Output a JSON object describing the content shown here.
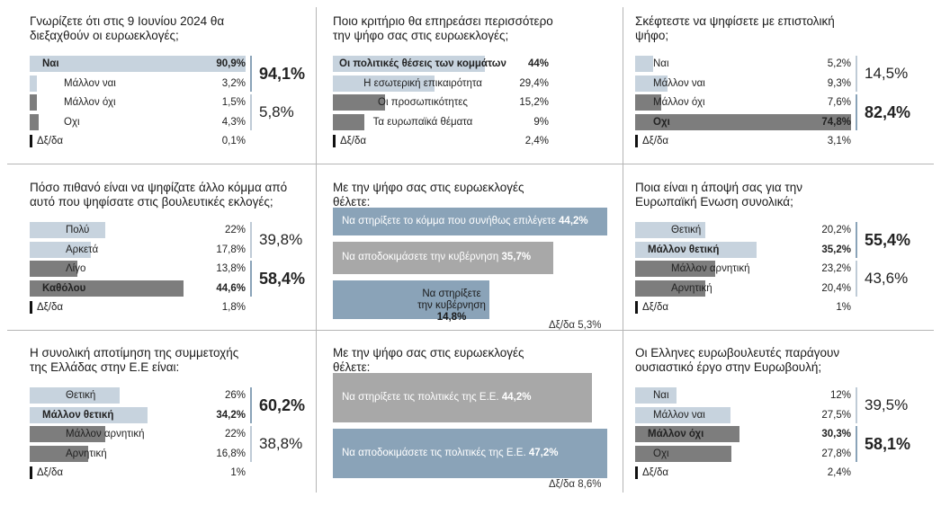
{
  "colors": {
    "light": "#c7d3de",
    "blue": "#8aa3b8",
    "gray": "#a8a8a8",
    "dark": "#7d7d7d",
    "pillar": "#8aa3b8",
    "dk": "#111111"
  },
  "chart_data": [
    {
      "type": "bar",
      "title": "Γνωρίζετε ότι στις 9 Ιουνίου 2024 θα διεξαχθούν οι ευρωεκλογές;",
      "rows": [
        {
          "label": "Ναι",
          "value_text": "90,9%",
          "value": 90.9,
          "color": "light",
          "bold": true
        },
        {
          "label": "Μάλλον ναι",
          "value_text": "3,2%",
          "value": 3.2,
          "color": "light",
          "bold": false
        },
        {
          "label": "Μάλλον όχι",
          "value_text": "1,5%",
          "value": 1.5,
          "color": "dark",
          "bold": false
        },
        {
          "label": "Οχι",
          "value_text": "4,3%",
          "value": 4.3,
          "color": "dark",
          "bold": false
        },
        {
          "label": "Δξ/δα",
          "value_text": "0,1%",
          "value": 0.1,
          "color": "dk",
          "bold": false
        }
      ],
      "groups": [
        {
          "value_text": "94,1%",
          "bold": true
        },
        {
          "value_text": "5,8%",
          "bold": false
        }
      ]
    },
    {
      "type": "bar",
      "title": "Ποιο κριτήριο θα επηρεάσει περισσότερο την ψήφο σας στις ευρωεκλογές;",
      "rows": [
        {
          "label": "Οι πολιτικές θέσεις των κομμάτων",
          "value_text": "44%",
          "value": 44,
          "color": "light",
          "bold": true
        },
        {
          "label": "Η εσωτερική επικαιρότητα",
          "value_text": "29,4%",
          "value": 29.4,
          "color": "light",
          "bold": false
        },
        {
          "label": "Οι προσωπικότητες",
          "value_text": "15,2%",
          "value": 15.2,
          "color": "dark",
          "bold": false
        },
        {
          "label": "Τα ευρωπαϊκά θέματα",
          "value_text": "9%",
          "value": 9,
          "color": "dark",
          "bold": false
        },
        {
          "label": "Δξ/δα",
          "value_text": "2,4%",
          "value": 2.4,
          "color": "dk",
          "bold": false
        }
      ],
      "groups": []
    },
    {
      "type": "bar",
      "title": "Σκέφτεστε να ψηφίσετε με επιστολική ψήφο;",
      "rows": [
        {
          "label": "Ναι",
          "value_text": "5,2%",
          "value": 5.2,
          "color": "light",
          "bold": false
        },
        {
          "label": "Μάλλον ναι",
          "value_text": "9,3%",
          "value": 9.3,
          "color": "light",
          "bold": false
        },
        {
          "label": "Μάλλον όχι",
          "value_text": "7,6%",
          "value": 7.6,
          "color": "dark",
          "bold": false
        },
        {
          "label": "Οχι",
          "value_text": "74,8%",
          "value": 74.8,
          "color": "dark",
          "bold": true
        },
        {
          "label": "Δξ/δα",
          "value_text": "3,1%",
          "value": 3.1,
          "color": "dk",
          "bold": false
        }
      ],
      "groups": [
        {
          "value_text": "14,5%",
          "bold": false
        },
        {
          "value_text": "82,4%",
          "bold": true
        }
      ]
    },
    {
      "type": "bar",
      "title": "Πόσο πιθανό είναι να ψηφίζατε άλλο κόμμα από αυτό που ψηφίσατε στις βουλευτικές εκλογές;",
      "rows": [
        {
          "label": "Πολύ",
          "value_text": "22%",
          "value": 22,
          "color": "light",
          "bold": false
        },
        {
          "label": "Αρκετά",
          "value_text": "17,8%",
          "value": 17.8,
          "color": "light",
          "bold": false
        },
        {
          "label": "Λίγο",
          "value_text": "13,8%",
          "value": 13.8,
          "color": "dark",
          "bold": false
        },
        {
          "label": "Καθόλου",
          "value_text": "44,6%",
          "value": 44.6,
          "color": "dark",
          "bold": true
        },
        {
          "label": "Δξ/δα",
          "value_text": "1,8%",
          "value": 1.8,
          "color": "dk",
          "bold": false
        }
      ],
      "groups": [
        {
          "value_text": "39,8%",
          "bold": false
        },
        {
          "value_text": "58,4%",
          "bold": true
        }
      ]
    },
    {
      "type": "bar",
      "title": "Με την ψήφο σας στις ευρωεκλογές θέλετε:",
      "boxes": [
        {
          "label": "Να στηρίξετε το κόμμα που συνήθως επιλέγετε",
          "value_text": "44,2%",
          "value": 44.2,
          "color": "blue"
        },
        {
          "label": "Να αποδοκιμάσετε την κυβέρνηση",
          "value_text": "35,7%",
          "value": 35.7,
          "color": "gray"
        },
        {
          "label": "Να στηρίξετε την κυβέρνηση",
          "value_text": "14,8%",
          "value": 14.8,
          "color": "blue"
        }
      ],
      "dk": {
        "label": "Δξ/δα",
        "value_text": "5,3%",
        "value": 5.3
      }
    },
    {
      "type": "bar",
      "title": "Ποια είναι η άποψή σας για την Ευρωπαϊκή Ενωση συνολικά;",
      "rows": [
        {
          "label": "Θετική",
          "value_text": "20,2%",
          "value": 20.2,
          "color": "light",
          "bold": false
        },
        {
          "label": "Μάλλον θετική",
          "value_text": "35,2%",
          "value": 35.2,
          "color": "light",
          "bold": true
        },
        {
          "label": "Μάλλον αρνητική",
          "value_text": "23,2%",
          "value": 23.2,
          "color": "dark",
          "bold": false
        },
        {
          "label": "Αρνητική",
          "value_text": "20,4%",
          "value": 20.4,
          "color": "dark",
          "bold": false
        },
        {
          "label": "Δξ/δα",
          "value_text": "1%",
          "value": 1,
          "color": "dk",
          "bold": false
        }
      ],
      "groups": [
        {
          "value_text": "55,4%",
          "bold": true
        },
        {
          "value_text": "43,6%",
          "bold": false
        }
      ]
    },
    {
      "type": "bar",
      "title": "Η συνολική αποτίμηση της συμμετοχής της Ελλάδας στην Ε.Ε είναι:",
      "rows": [
        {
          "label": "Θετική",
          "value_text": "26%",
          "value": 26,
          "color": "light",
          "bold": false
        },
        {
          "label": "Μάλλον θετική",
          "value_text": "34,2%",
          "value": 34.2,
          "color": "light",
          "bold": true
        },
        {
          "label": "Μάλλον αρνητική",
          "value_text": "22%",
          "value": 22,
          "color": "dark",
          "bold": false
        },
        {
          "label": "Αρνητική",
          "value_text": "16,8%",
          "value": 16.8,
          "color": "dark",
          "bold": false
        },
        {
          "label": "Δξ/δα",
          "value_text": "1%",
          "value": 1,
          "color": "dk",
          "bold": false
        }
      ],
      "groups": [
        {
          "value_text": "60,2%",
          "bold": true
        },
        {
          "value_text": "38,8%",
          "bold": false
        }
      ]
    },
    {
      "type": "bar",
      "title": "Με την ψήφο σας στις ευρωεκλογές θέλετε:",
      "boxes": [
        {
          "label": "Να στηρίξετε τις πολιτικές της Ε.Ε.",
          "value_text": "44,2%",
          "value": 44.2,
          "color": "gray"
        },
        {
          "label": "Να αποδοκιμάσετε τις πολιτικές της Ε.Ε.",
          "value_text": "47,2%",
          "value": 47.2,
          "color": "blue"
        }
      ],
      "dk": {
        "label": "Δξ/δα",
        "value_text": "8,6%",
        "value": 8.6
      }
    },
    {
      "type": "bar",
      "title": "Οι Ελληνες ευρωβουλευτές παράγουν ουσιαστικό έργο στην Ευρωβουλή;",
      "rows": [
        {
          "label": "Ναι",
          "value_text": "12%",
          "value": 12,
          "color": "light",
          "bold": false
        },
        {
          "label": "Μάλλον ναι",
          "value_text": "27,5%",
          "value": 27.5,
          "color": "light",
          "bold": false
        },
        {
          "label": "Μάλλον όχι",
          "value_text": "30,3%",
          "value": 30.3,
          "color": "dark",
          "bold": true
        },
        {
          "label": "Οχι",
          "value_text": "27,8%",
          "value": 27.8,
          "color": "dark",
          "bold": false
        },
        {
          "label": "Δξ/δα",
          "value_text": "2,4%",
          "value": 2.4,
          "color": "dk",
          "bold": false
        }
      ],
      "groups": [
        {
          "value_text": "39,5%",
          "bold": false
        },
        {
          "value_text": "58,1%",
          "bold": true
        }
      ]
    }
  ]
}
